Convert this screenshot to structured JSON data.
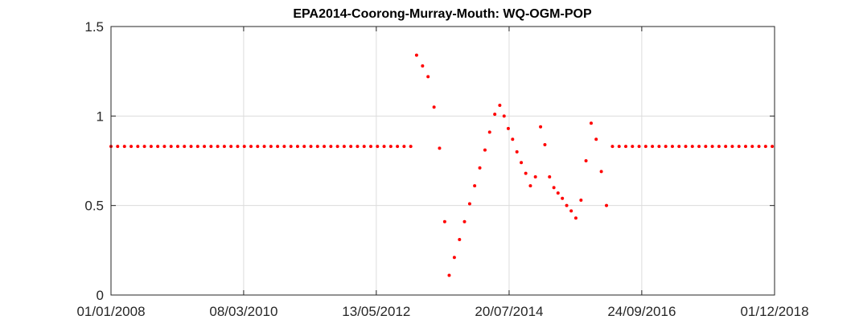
{
  "chart_data": {
    "type": "scatter",
    "title": "EPA2014-Coorong-Murray-Mouth: WQ-OGM-POP",
    "xlabel": "",
    "ylabel": "",
    "x_axis": {
      "type": "date",
      "range": [
        "2008-01-01",
        "2018-12-01"
      ],
      "ticks": [
        {
          "date": "2008-01-01",
          "label": "01/01/2008"
        },
        {
          "date": "2010-03-08",
          "label": "08/03/2010"
        },
        {
          "date": "2012-05-13",
          "label": "13/05/2012"
        },
        {
          "date": "2014-07-20",
          "label": "20/07/2014"
        },
        {
          "date": "2016-09-24",
          "label": "24/09/2016"
        },
        {
          "date": "2018-12-01",
          "label": "01/12/2018"
        }
      ]
    },
    "y_axis": {
      "range": [
        0,
        1.5
      ],
      "ticks": [
        {
          "value": 0,
          "label": "0"
        },
        {
          "value": 0.5,
          "label": "0.5"
        },
        {
          "value": 1,
          "label": "1"
        },
        {
          "value": 1.5,
          "label": "1.5"
        }
      ]
    },
    "grid": true,
    "legend": "none",
    "marker_color": "#ff0000",
    "series": [
      {
        "points": [
          [
            "2008-01-01",
            0.83
          ],
          [
            "2008-02-10",
            0.83
          ],
          [
            "2008-03-22",
            0.83
          ],
          [
            "2008-05-01",
            0.83
          ],
          [
            "2008-06-10",
            0.83
          ],
          [
            "2008-07-20",
            0.83
          ],
          [
            "2008-08-29",
            0.83
          ],
          [
            "2008-10-08",
            0.83
          ],
          [
            "2008-11-17",
            0.83
          ],
          [
            "2008-12-27",
            0.83
          ],
          [
            "2009-02-05",
            0.83
          ],
          [
            "2009-03-17",
            0.83
          ],
          [
            "2009-04-26",
            0.83
          ],
          [
            "2009-06-05",
            0.83
          ],
          [
            "2009-07-15",
            0.83
          ],
          [
            "2009-08-24",
            0.83
          ],
          [
            "2009-10-03",
            0.83
          ],
          [
            "2009-11-12",
            0.83
          ],
          [
            "2009-12-22",
            0.83
          ],
          [
            "2010-01-31",
            0.83
          ],
          [
            "2010-03-12",
            0.83
          ],
          [
            "2010-04-21",
            0.83
          ],
          [
            "2010-05-31",
            0.83
          ],
          [
            "2010-07-10",
            0.83
          ],
          [
            "2010-08-19",
            0.83
          ],
          [
            "2010-09-28",
            0.83
          ],
          [
            "2010-11-07",
            0.83
          ],
          [
            "2010-12-17",
            0.83
          ],
          [
            "2011-01-26",
            0.83
          ],
          [
            "2011-03-07",
            0.83
          ],
          [
            "2011-04-16",
            0.83
          ],
          [
            "2011-05-26",
            0.83
          ],
          [
            "2011-07-05",
            0.83
          ],
          [
            "2011-08-14",
            0.83
          ],
          [
            "2011-09-23",
            0.83
          ],
          [
            "2011-11-02",
            0.83
          ],
          [
            "2011-12-12",
            0.83
          ],
          [
            "2012-01-21",
            0.83
          ],
          [
            "2012-03-01",
            0.83
          ],
          [
            "2012-04-10",
            0.83
          ],
          [
            "2012-05-20",
            0.83
          ],
          [
            "2012-06-29",
            0.83
          ],
          [
            "2012-08-08",
            0.83
          ],
          [
            "2012-09-17",
            0.83
          ],
          [
            "2012-10-27",
            0.83
          ],
          [
            "2012-12-06",
            0.83
          ],
          [
            "2013-01-10",
            1.34
          ],
          [
            "2013-02-15",
            1.28
          ],
          [
            "2013-03-20",
            1.22
          ],
          [
            "2013-04-25",
            1.05
          ],
          [
            "2013-05-28",
            0.82
          ],
          [
            "2013-06-28",
            0.41
          ],
          [
            "2013-07-25",
            0.11
          ],
          [
            "2013-08-25",
            0.21
          ],
          [
            "2013-09-25",
            0.31
          ],
          [
            "2013-10-25",
            0.41
          ],
          [
            "2013-11-25",
            0.51
          ],
          [
            "2013-12-25",
            0.61
          ],
          [
            "2014-01-25",
            0.71
          ],
          [
            "2014-02-25",
            0.81
          ],
          [
            "2014-03-25",
            0.91
          ],
          [
            "2014-04-25",
            1.01
          ],
          [
            "2014-05-25",
            1.06
          ],
          [
            "2014-06-20",
            1.0
          ],
          [
            "2014-07-15",
            0.93
          ],
          [
            "2014-08-10",
            0.87
          ],
          [
            "2014-09-05",
            0.8
          ],
          [
            "2014-10-01",
            0.74
          ],
          [
            "2014-10-28",
            0.68
          ],
          [
            "2014-11-25",
            0.61
          ],
          [
            "2014-12-25",
            0.66
          ],
          [
            "2015-01-25",
            0.94
          ],
          [
            "2015-02-20",
            0.84
          ],
          [
            "2015-03-20",
            0.66
          ],
          [
            "2015-04-15",
            0.6
          ],
          [
            "2015-05-10",
            0.57
          ],
          [
            "2015-06-05",
            0.54
          ],
          [
            "2015-07-01",
            0.5
          ],
          [
            "2015-07-28",
            0.47
          ],
          [
            "2015-08-25",
            0.43
          ],
          [
            "2015-09-25",
            0.53
          ],
          [
            "2015-10-25",
            0.75
          ],
          [
            "2015-11-25",
            0.96
          ],
          [
            "2015-12-25",
            0.87
          ],
          [
            "2016-01-25",
            0.69
          ],
          [
            "2016-02-25",
            0.5
          ],
          [
            "2016-04-01",
            0.83
          ],
          [
            "2016-05-11",
            0.83
          ],
          [
            "2016-06-20",
            0.83
          ],
          [
            "2016-07-30",
            0.83
          ],
          [
            "2016-09-08",
            0.83
          ],
          [
            "2016-10-18",
            0.83
          ],
          [
            "2016-11-27",
            0.83
          ],
          [
            "2017-01-06",
            0.83
          ],
          [
            "2017-02-15",
            0.83
          ],
          [
            "2017-03-27",
            0.83
          ],
          [
            "2017-05-06",
            0.83
          ],
          [
            "2017-06-15",
            0.83
          ],
          [
            "2017-07-25",
            0.83
          ],
          [
            "2017-09-03",
            0.83
          ],
          [
            "2017-10-13",
            0.83
          ],
          [
            "2017-11-22",
            0.83
          ],
          [
            "2018-01-01",
            0.83
          ],
          [
            "2018-02-10",
            0.83
          ],
          [
            "2018-03-22",
            0.83
          ],
          [
            "2018-05-01",
            0.83
          ],
          [
            "2018-06-10",
            0.83
          ],
          [
            "2018-07-20",
            0.83
          ],
          [
            "2018-08-29",
            0.83
          ],
          [
            "2018-10-08",
            0.83
          ],
          [
            "2018-11-17",
            0.83
          ]
        ]
      }
    ]
  }
}
